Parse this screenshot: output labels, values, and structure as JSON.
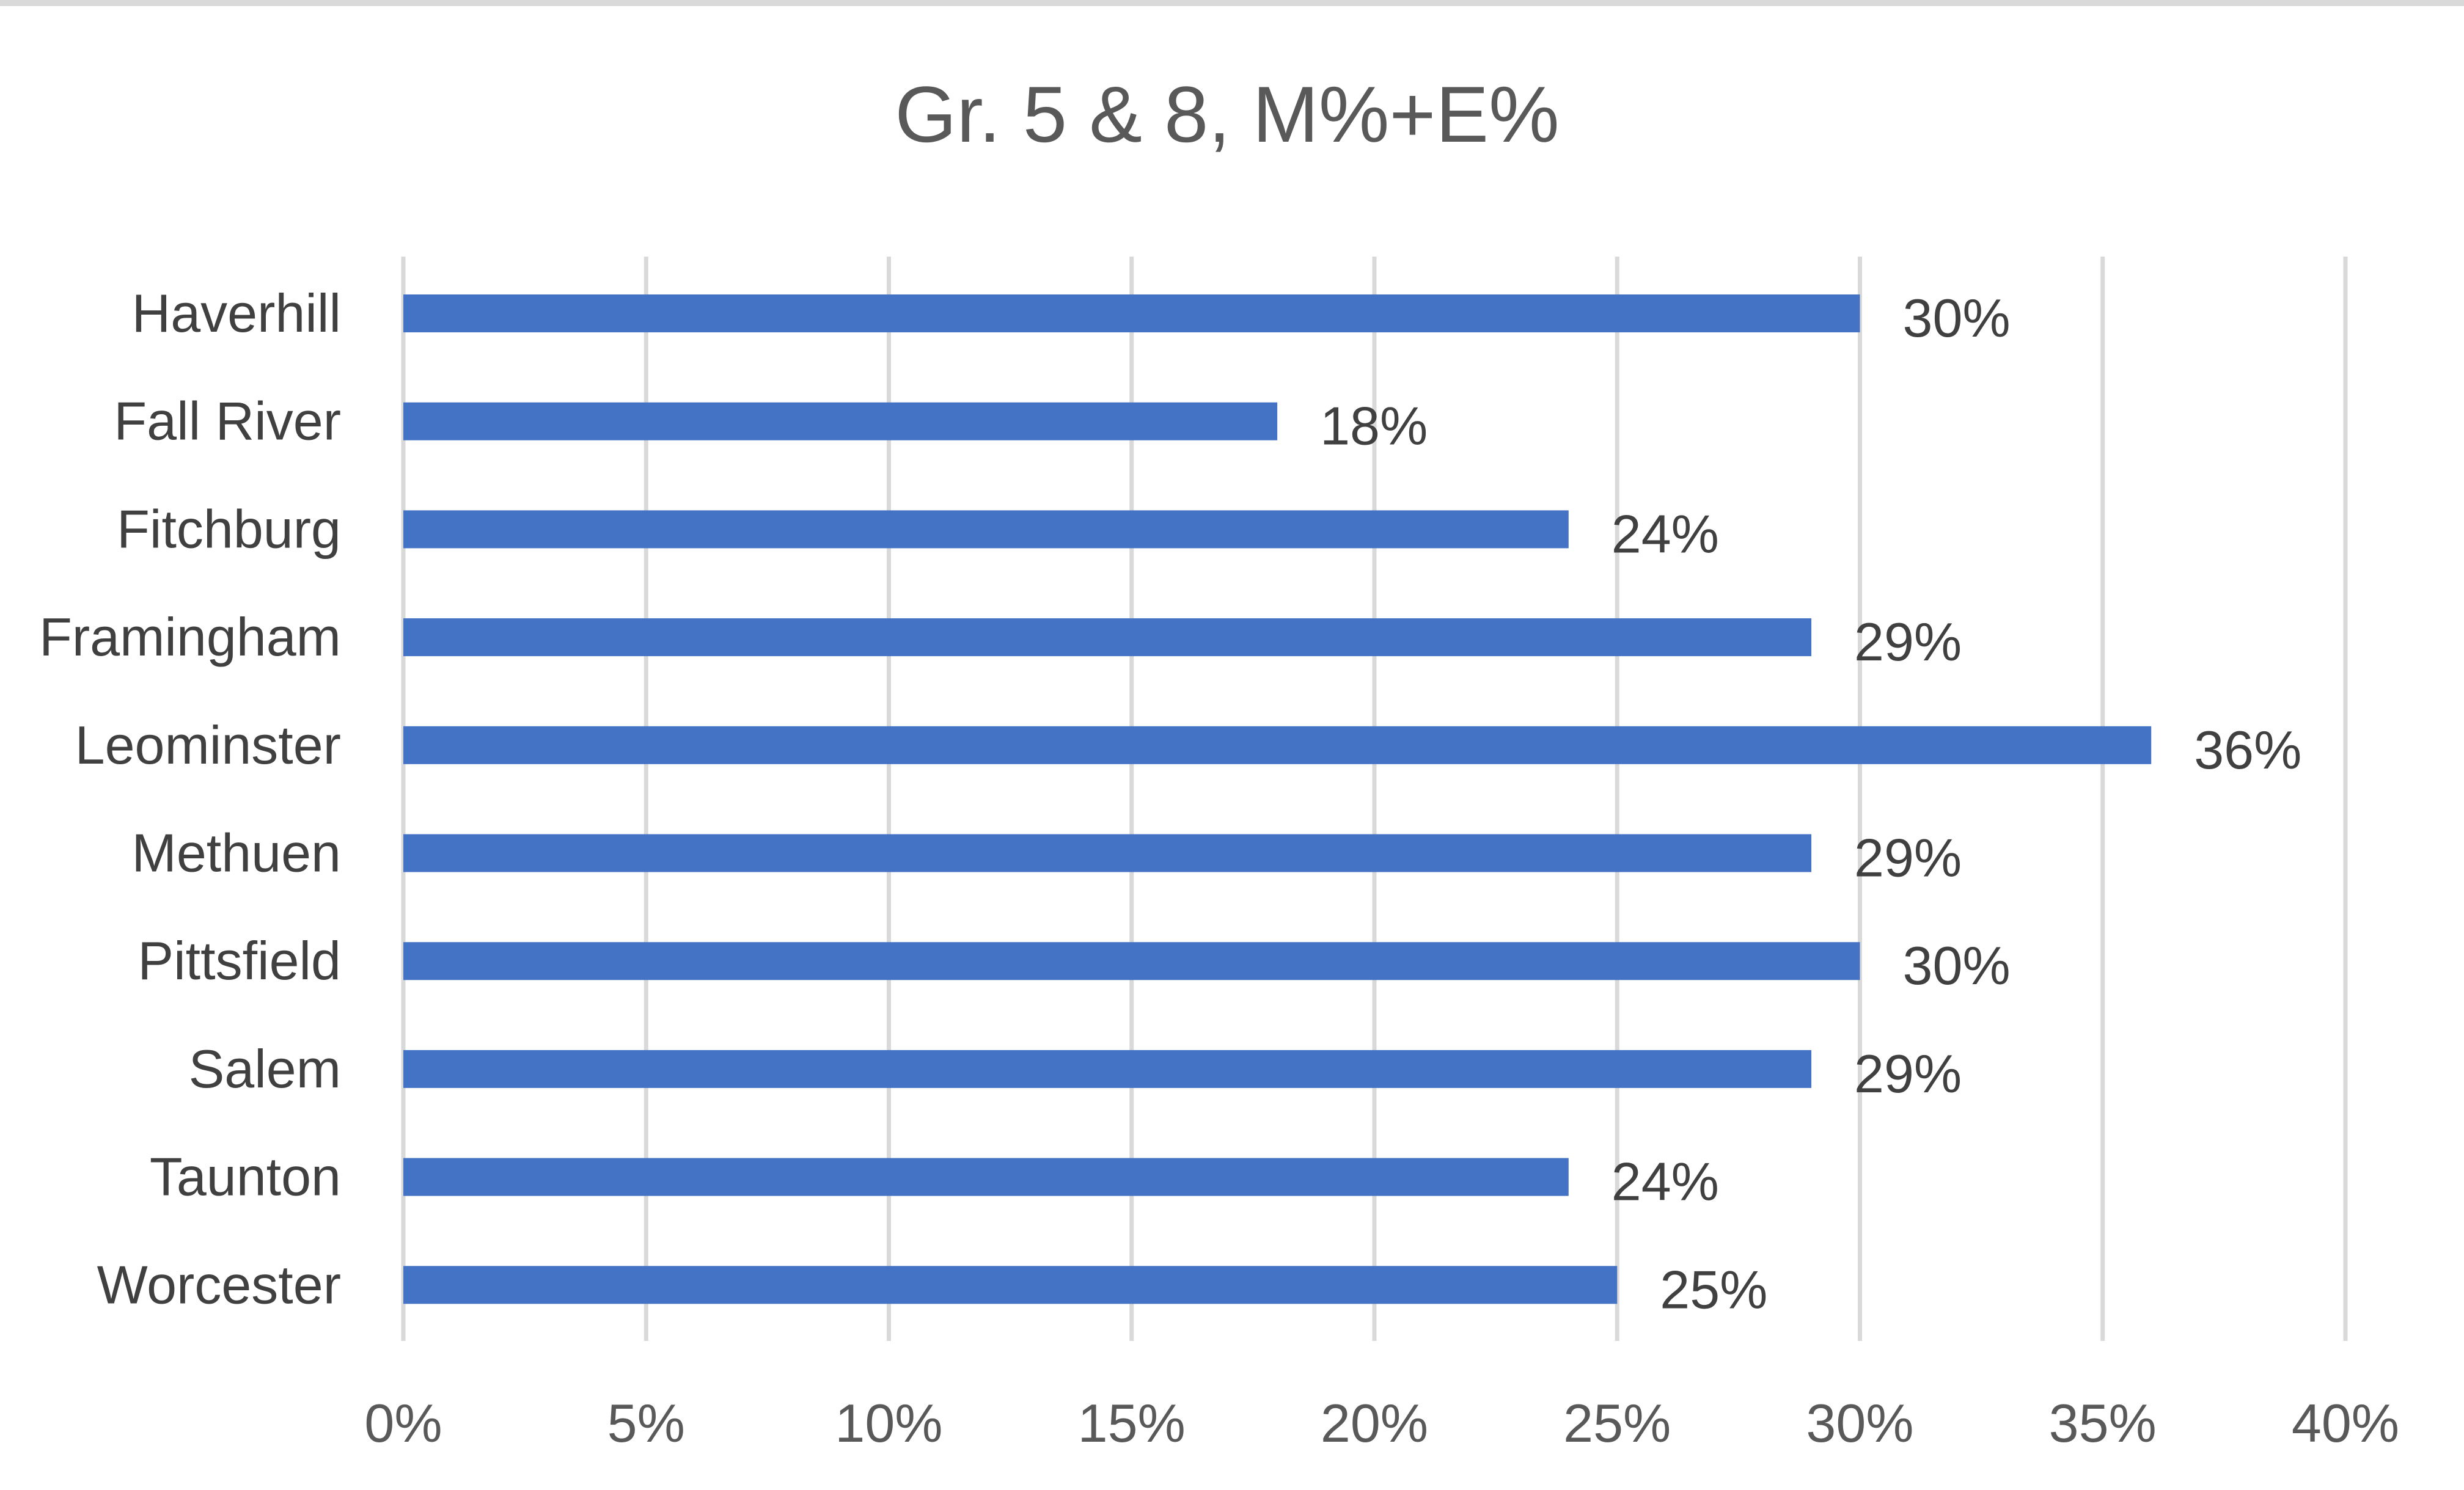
{
  "chart_data": {
    "type": "bar",
    "orientation": "horizontal",
    "title": "Gr. 5 & 8, M%+E%",
    "xlabel": "",
    "ylabel": "",
    "categories": [
      "Haverhill",
      "Fall River",
      "Fitchburg",
      "Framingham",
      "Leominster",
      "Methuen",
      "Pittsfield",
      "Salem",
      "Taunton",
      "Worcester"
    ],
    "values": [
      30,
      18,
      24,
      29,
      36,
      29,
      30,
      29,
      24,
      25
    ],
    "value_labels": [
      "30%",
      "18%",
      "24%",
      "29%",
      "36%",
      "29%",
      "30%",
      "29%",
      "24%",
      "25%"
    ],
    "xlim": [
      0,
      40
    ],
    "x_ticks": [
      0,
      5,
      10,
      15,
      20,
      25,
      30,
      35,
      40
    ],
    "x_tick_labels": [
      "0%",
      "5%",
      "10%",
      "15%",
      "20%",
      "25%",
      "30%",
      "35%",
      "40%"
    ],
    "grid": "vertical",
    "legend": "none",
    "colors": {
      "bar": "#4472c4",
      "grid": "#d9d9d9",
      "title": "#595959",
      "text": "#404040"
    }
  }
}
